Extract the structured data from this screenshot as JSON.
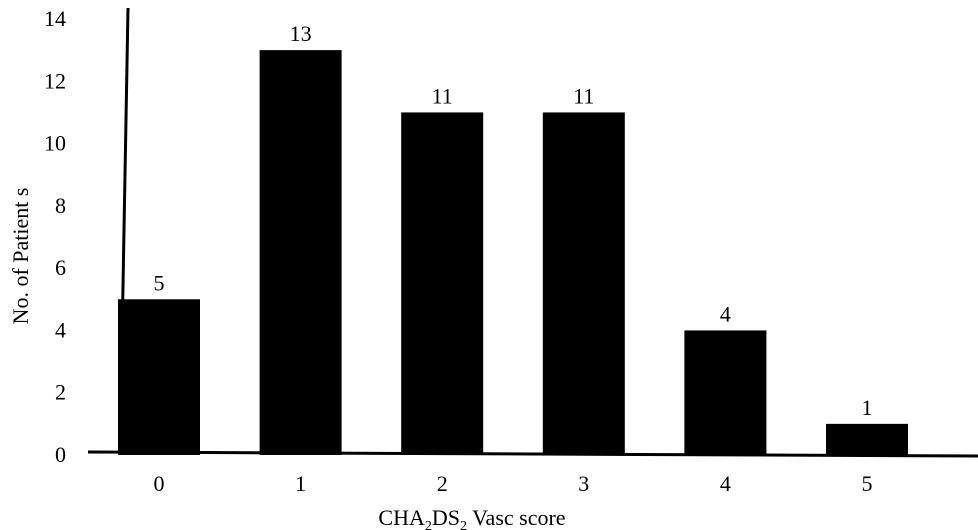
{
  "chart_data": {
    "type": "bar",
    "categories": [
      "0",
      "1",
      "2",
      "3",
      "4",
      "5"
    ],
    "values": [
      5,
      13,
      11,
      11,
      4,
      1
    ],
    "data_labels": [
      "5",
      "13",
      "11",
      "11",
      "4",
      "1"
    ],
    "ylabel": "No. of Patient s",
    "xlabel": {
      "parts": [
        {
          "text": "CHA",
          "sub": false
        },
        {
          "text": "2",
          "sub": true
        },
        {
          "text": "DS",
          "sub": false
        },
        {
          "text": "2",
          "sub": true
        },
        {
          "text": " Vasc score",
          "sub": false
        }
      ]
    },
    "ylim": [
      0,
      14
    ],
    "yticks": [
      "0",
      "2",
      "4",
      "6",
      "8",
      "10",
      "12",
      "14"
    ],
    "grid": false,
    "legend": "none",
    "bar_color": "#000000"
  }
}
